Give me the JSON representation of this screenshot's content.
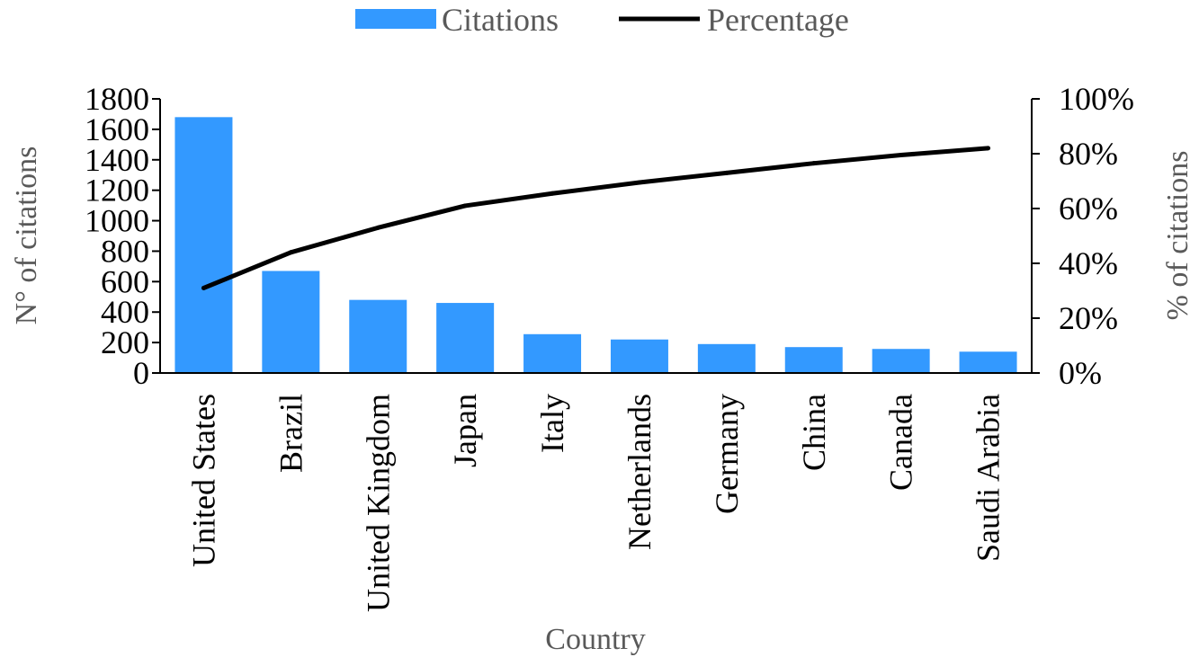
{
  "chart_data": {
    "type": "bar",
    "categories": [
      "United States",
      "Brazil",
      "United Kingdom",
      "Japan",
      "Italy",
      "Netherlands",
      "Germany",
      "China",
      "Canada",
      "Saudi Arabia"
    ],
    "series": [
      {
        "name": "Citations",
        "type": "bar",
        "axis": "left",
        "color": "#3399ff",
        "values": [
          1680,
          670,
          480,
          460,
          255,
          220,
          190,
          170,
          158,
          140
        ]
      },
      {
        "name": "Percentage",
        "type": "line",
        "axis": "right",
        "color": "#000000",
        "values": [
          31,
          44,
          53,
          61,
          65.5,
          69.5,
          73,
          76.5,
          79.5,
          82
        ]
      }
    ],
    "xlabel": "Country",
    "ylabel": "N° of citations",
    "y2label": "% of citations",
    "ylim": [
      0,
      1800
    ],
    "y2lim": [
      0,
      100
    ],
    "yticks": [
      "0",
      "200",
      "400",
      "600",
      "800",
      "1000",
      "1200",
      "1400",
      "1600",
      "1800"
    ],
    "y2ticks": [
      "0%",
      "20%",
      "40%",
      "60%",
      "80%",
      "100%"
    ],
    "grid": false,
    "legend_position": "top-center"
  }
}
